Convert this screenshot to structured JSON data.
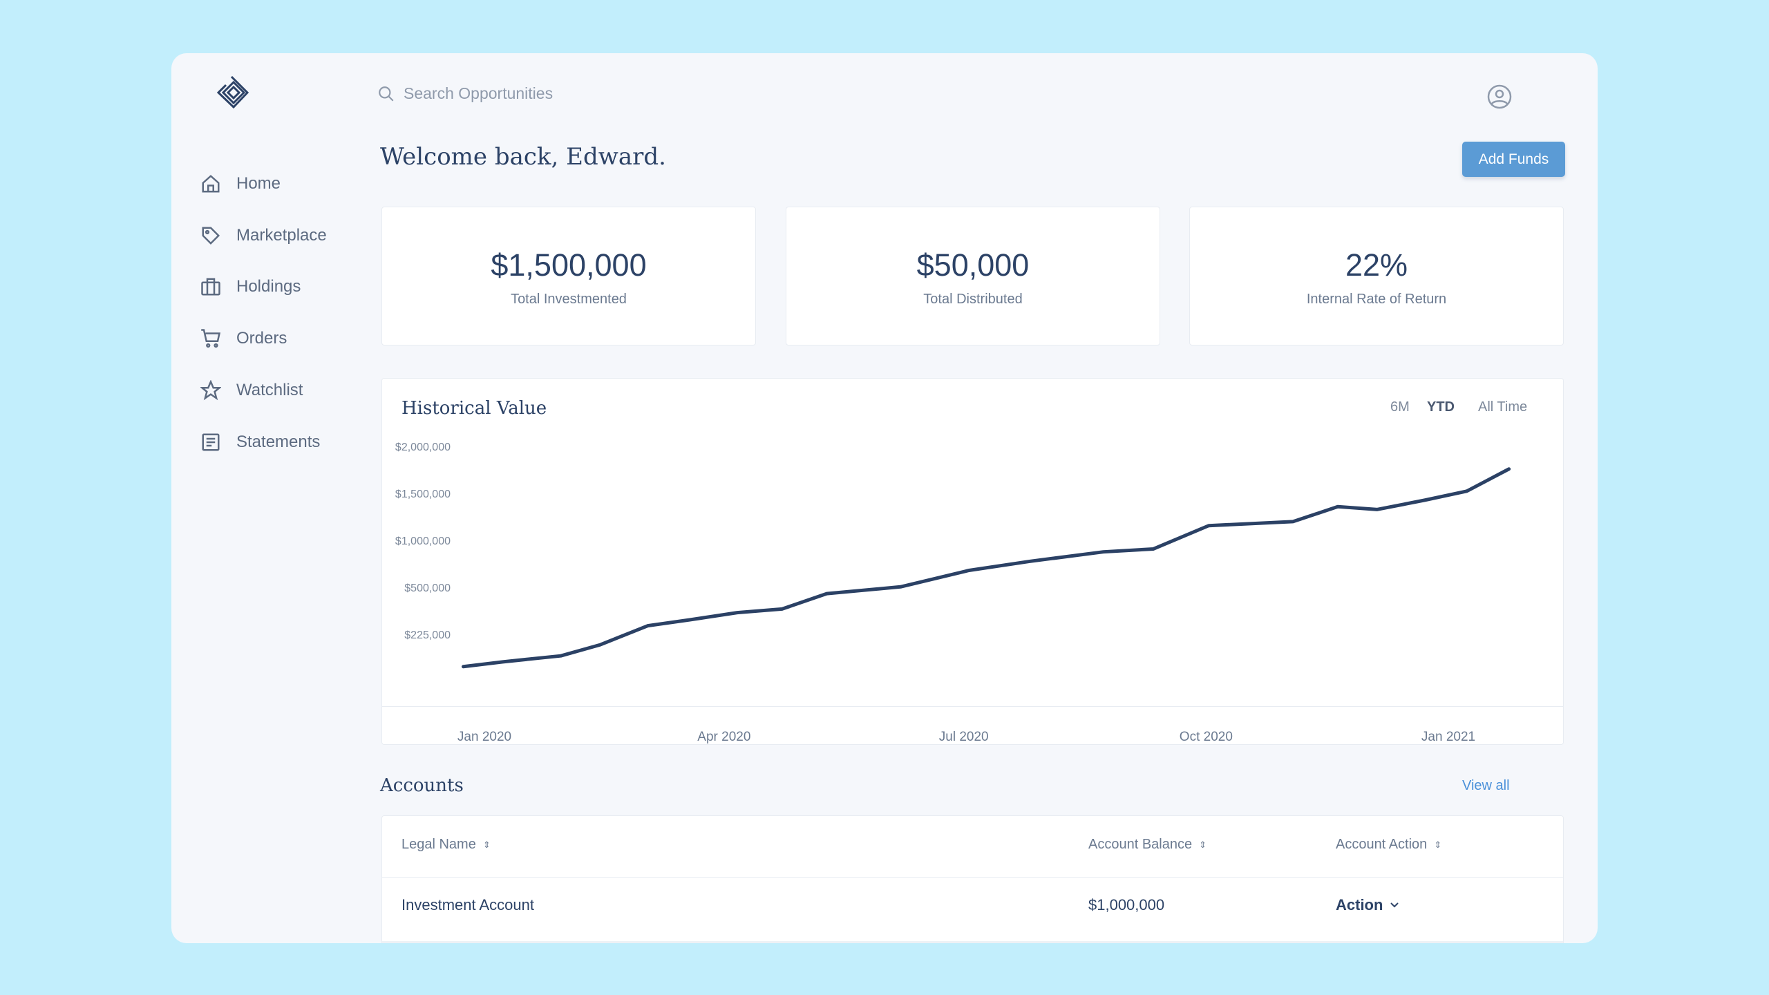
{
  "search": {
    "placeholder": "Search Opportunities",
    "icon": "search-icon"
  },
  "user": {
    "icon": "user-circle-icon"
  },
  "sidebar": {
    "items": [
      {
        "label": "Home",
        "icon": "home-icon"
      },
      {
        "label": "Marketplace",
        "icon": "tag-icon"
      },
      {
        "label": "Holdings",
        "icon": "briefcase-icon"
      },
      {
        "label": "Orders",
        "icon": "cart-icon"
      },
      {
        "label": "Watchlist",
        "icon": "star-icon"
      },
      {
        "label": "Statements",
        "icon": "document-icon"
      }
    ]
  },
  "header": {
    "welcome": "Welcome back, Edward.",
    "add_funds": "Add Funds"
  },
  "stats": [
    {
      "value": "$1,500,000",
      "label": "Total Investmented"
    },
    {
      "value": "$50,000",
      "label": "Total Distributed"
    },
    {
      "value": "22%",
      "label": "Internal Rate of Return"
    }
  ],
  "chart_panel": {
    "title": "Historical Value",
    "ranges": [
      "6M",
      "YTD",
      "All Time"
    ],
    "selected_range": "YTD"
  },
  "chart_data": {
    "type": "line",
    "title": "Historical Value",
    "color": "#2b4165",
    "x_ticks": [
      {
        "label": "Jan 2020",
        "date": "2020-01-01"
      },
      {
        "label": "Apr 2020",
        "date": "2020-04-01"
      },
      {
        "label": "Jul 2020",
        "date": "2020-07-01"
      },
      {
        "label": "Oct 2020",
        "date": "2020-10-01"
      },
      {
        "label": "Jan 2021",
        "date": "2021-01-01"
      }
    ],
    "y_ticks": [
      {
        "label": "$225,000",
        "value": 225000
      },
      {
        "label": "$500,000",
        "value": 500000
      },
      {
        "label": "$1,000,000",
        "value": 1000000
      },
      {
        "label": "$1,500,000",
        "value": 1500000
      },
      {
        "label": "$2,000,000",
        "value": 2000000
      }
    ],
    "grid": false,
    "points": [
      {
        "x": "2019-12-24",
        "y": 44000
      },
      {
        "x": "2020-01-08",
        "y": 72000
      },
      {
        "x": "2020-01-30",
        "y": 107000
      },
      {
        "x": "2020-02-14",
        "y": 172000
      },
      {
        "x": "2020-03-03",
        "y": 283000
      },
      {
        "x": "2020-03-19",
        "y": 318000
      },
      {
        "x": "2020-04-06",
        "y": 360000
      },
      {
        "x": "2020-04-23",
        "y": 381000
      },
      {
        "x": "2020-05-10",
        "y": 471000
      },
      {
        "x": "2020-06-07",
        "y": 520000
      },
      {
        "x": "2020-07-03",
        "y": 695000
      },
      {
        "x": "2020-07-26",
        "y": 791000
      },
      {
        "x": "2020-08-23",
        "y": 892000
      },
      {
        "x": "2020-09-11",
        "y": 923000
      },
      {
        "x": "2020-10-02",
        "y": 1171000
      },
      {
        "x": "2020-11-03",
        "y": 1214000
      },
      {
        "x": "2020-11-20",
        "y": 1373000
      },
      {
        "x": "2020-12-05",
        "y": 1343000
      },
      {
        "x": "2020-12-23",
        "y": 1442000
      },
      {
        "x": "2021-01-08",
        "y": 1538000
      },
      {
        "x": "2021-01-24",
        "y": 1774000
      }
    ]
  },
  "accounts": {
    "title": "Accounts",
    "view_all": "View all",
    "columns": [
      "Legal Name",
      "Account Balance",
      "Account Action"
    ],
    "rows": [
      {
        "name": "Investment Account",
        "balance": "$1,000,000",
        "action": "Action"
      }
    ]
  }
}
